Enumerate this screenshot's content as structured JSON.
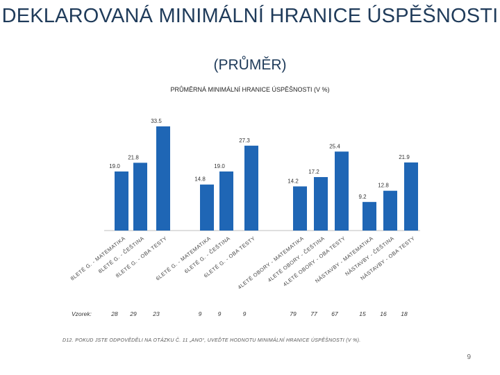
{
  "slide": {
    "title": "DEKLAROVANÁ MINIMÁLNÍ HRANICE ÚSPĚŠNOSTI",
    "subtitle": "(PRŮMĚR)",
    "footnote": "D12. Pokud jste odpověděli na otázku č. 11 „ano“, uveďte hodnotu minimální hranice úspěšnosti (v %).",
    "page_number": "9"
  },
  "colors": {
    "bar": "#1f66b5",
    "title": "#1f3b5a"
  },
  "chart_data": {
    "type": "bar",
    "title": "PRŮMĚRNÁ MINIMÁLNÍ HRANICE ÚSPĚŠNOSTI (V %)",
    "sample_label": "Vzorek:",
    "ylim": [
      0,
      35
    ],
    "categories": [
      "8leté G. - matematika",
      "8leté G. - čeština",
      "8leté G. - OBA TESTY",
      "6leté G. - matematika",
      "6leté G. - čeština",
      "6leté G. - OBA TESTY",
      "4leté obory - matematika",
      "4leté obory - čeština",
      "4leté obory - OBA TESTY",
      "Nástavby - matematika",
      "Nástavby - čeština",
      "Nástavby - OBA TESTY"
    ],
    "values": [
      19.0,
      21.8,
      33.5,
      14.8,
      19.0,
      27.3,
      14.2,
      17.2,
      25.4,
      9.2,
      12.8,
      21.9
    ],
    "value_labels": [
      "19.0",
      "21.8",
      "33.5",
      "14.8",
      "19.0",
      "27.3",
      "14.2",
      "17.2",
      "25.4",
      "9.2",
      "12.8",
      "21.9"
    ],
    "sample_sizes": [
      "28",
      "29",
      "23",
      "9",
      "9",
      "9",
      "79",
      "77",
      "67",
      "15",
      "16",
      "18"
    ]
  }
}
